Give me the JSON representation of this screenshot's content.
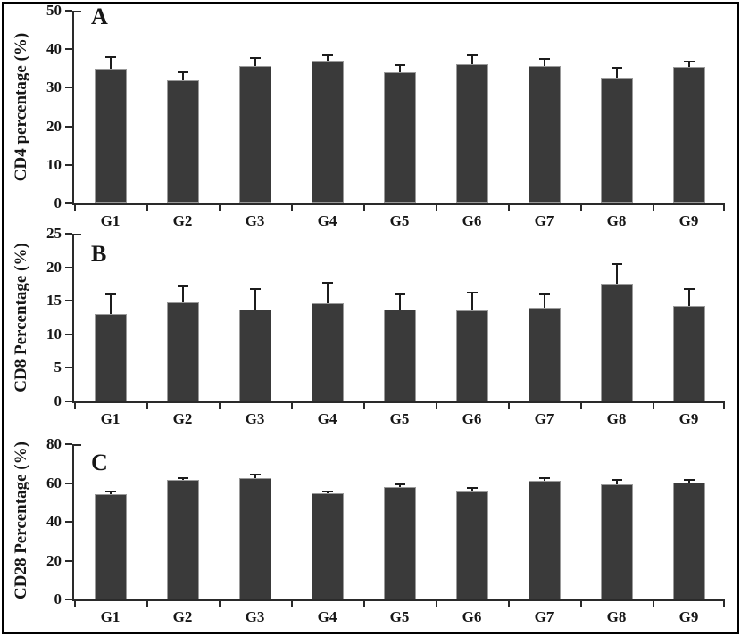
{
  "figure": {
    "background_color": "#ffffff",
    "frame_border_color": "#000000",
    "bar_color": "#3a3a3a",
    "bar_border_color": "#9a9a9a",
    "axis_color": "#2a2a2a",
    "error_bar_color": "#1c1c1c"
  },
  "chart_data": [
    {
      "type": "bar",
      "panel": "A",
      "ylabel": "CD4 percentage (%)",
      "xlabel": "",
      "categories": [
        "G1",
        "G2",
        "G3",
        "G4",
        "G5",
        "G6",
        "G7",
        "G8",
        "G9"
      ],
      "values": [
        35.0,
        32.0,
        35.6,
        37.0,
        34.0,
        36.0,
        35.6,
        32.4,
        35.5
      ],
      "errors": [
        2.9,
        2.0,
        2.2,
        1.5,
        1.8,
        2.5,
        1.8,
        2.8,
        1.2
      ],
      "ylim": [
        0,
        50
      ],
      "yticks": [
        0,
        10,
        20,
        30,
        40,
        50
      ],
      "grid": false,
      "legend": "none"
    },
    {
      "type": "bar",
      "panel": "B",
      "ylabel": "CD8 Percentage (%)",
      "xlabel": "",
      "categories": [
        "G1",
        "G2",
        "G3",
        "G4",
        "G5",
        "G6",
        "G7",
        "G8",
        "G9"
      ],
      "values": [
        13.0,
        14.7,
        13.7,
        14.6,
        13.7,
        13.5,
        13.9,
        17.6,
        14.2
      ],
      "errors": [
        2.9,
        2.5,
        3.0,
        3.1,
        2.3,
        2.7,
        2.0,
        2.9,
        2.6
      ],
      "ylim": [
        0,
        25
      ],
      "yticks": [
        0,
        5,
        10,
        15,
        20,
        25
      ],
      "grid": false,
      "legend": "none"
    },
    {
      "type": "bar",
      "panel": "C",
      "ylabel": "CD28 Percentage (%)",
      "xlabel": "",
      "categories": [
        "G1",
        "G2",
        "G3",
        "G4",
        "G5",
        "G6",
        "G7",
        "G8",
        "G9"
      ],
      "values": [
        54.2,
        61.5,
        62.4,
        54.6,
        58.0,
        55.6,
        61.2,
        59.4,
        60.3
      ],
      "errors": [
        1.4,
        0.8,
        2.0,
        1.2,
        1.5,
        1.8,
        1.5,
        2.2,
        1.5
      ],
      "ylim": [
        0,
        80
      ],
      "yticks": [
        0,
        20,
        40,
        60,
        80
      ],
      "grid": false,
      "legend": "none"
    }
  ]
}
